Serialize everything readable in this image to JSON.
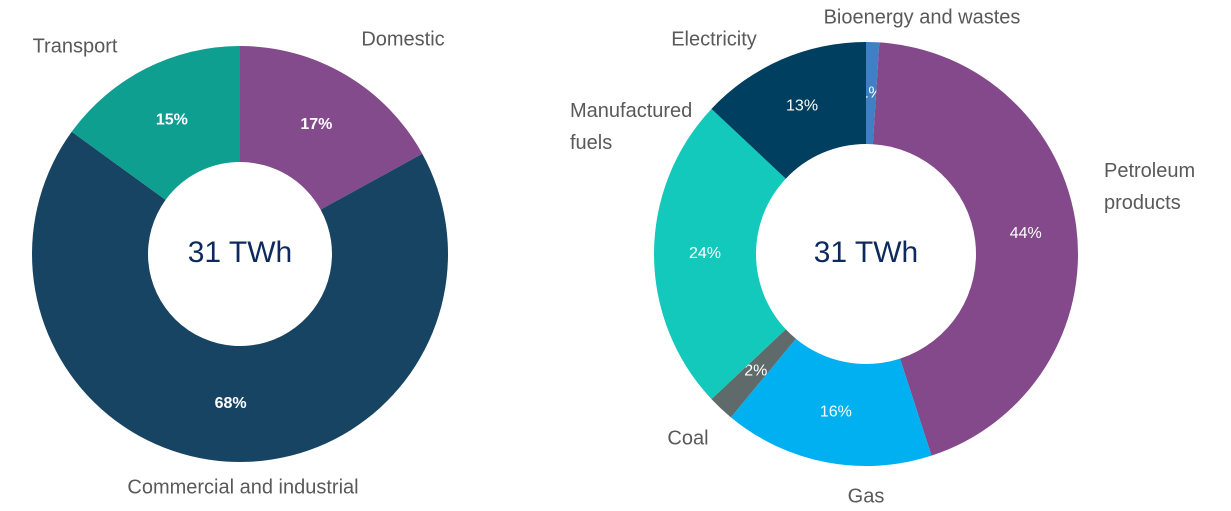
{
  "chart_data": [
    {
      "type": "donut",
      "center_text": "31 TWh",
      "label_bold": true,
      "categories": [
        "Domestic",
        "Commercial and industrial",
        "Transport"
      ],
      "values": [
        17,
        68,
        15
      ],
      "value_labels": [
        "17%",
        "68%",
        "15%"
      ],
      "colors": [
        "#834a8c",
        "#174462",
        "#0e9f91"
      ]
    },
    {
      "type": "donut",
      "center_text": "31 TWh",
      "label_bold": false,
      "categories": [
        "Bioenergy and wastes",
        "Petroleum products",
        "Gas",
        "Coal",
        "Manufactured fuels",
        "Electricity"
      ],
      "values": [
        1,
        44,
        16,
        2,
        24,
        13
      ],
      "value_labels": [
        "1%",
        "44%",
        "16%",
        "2%",
        "24%",
        "13%"
      ],
      "colors": [
        "#3f7fc5",
        "#83498b",
        "#00b0f0",
        "#5f6b6b",
        "#12c9bc",
        "#003f5f"
      ]
    }
  ]
}
